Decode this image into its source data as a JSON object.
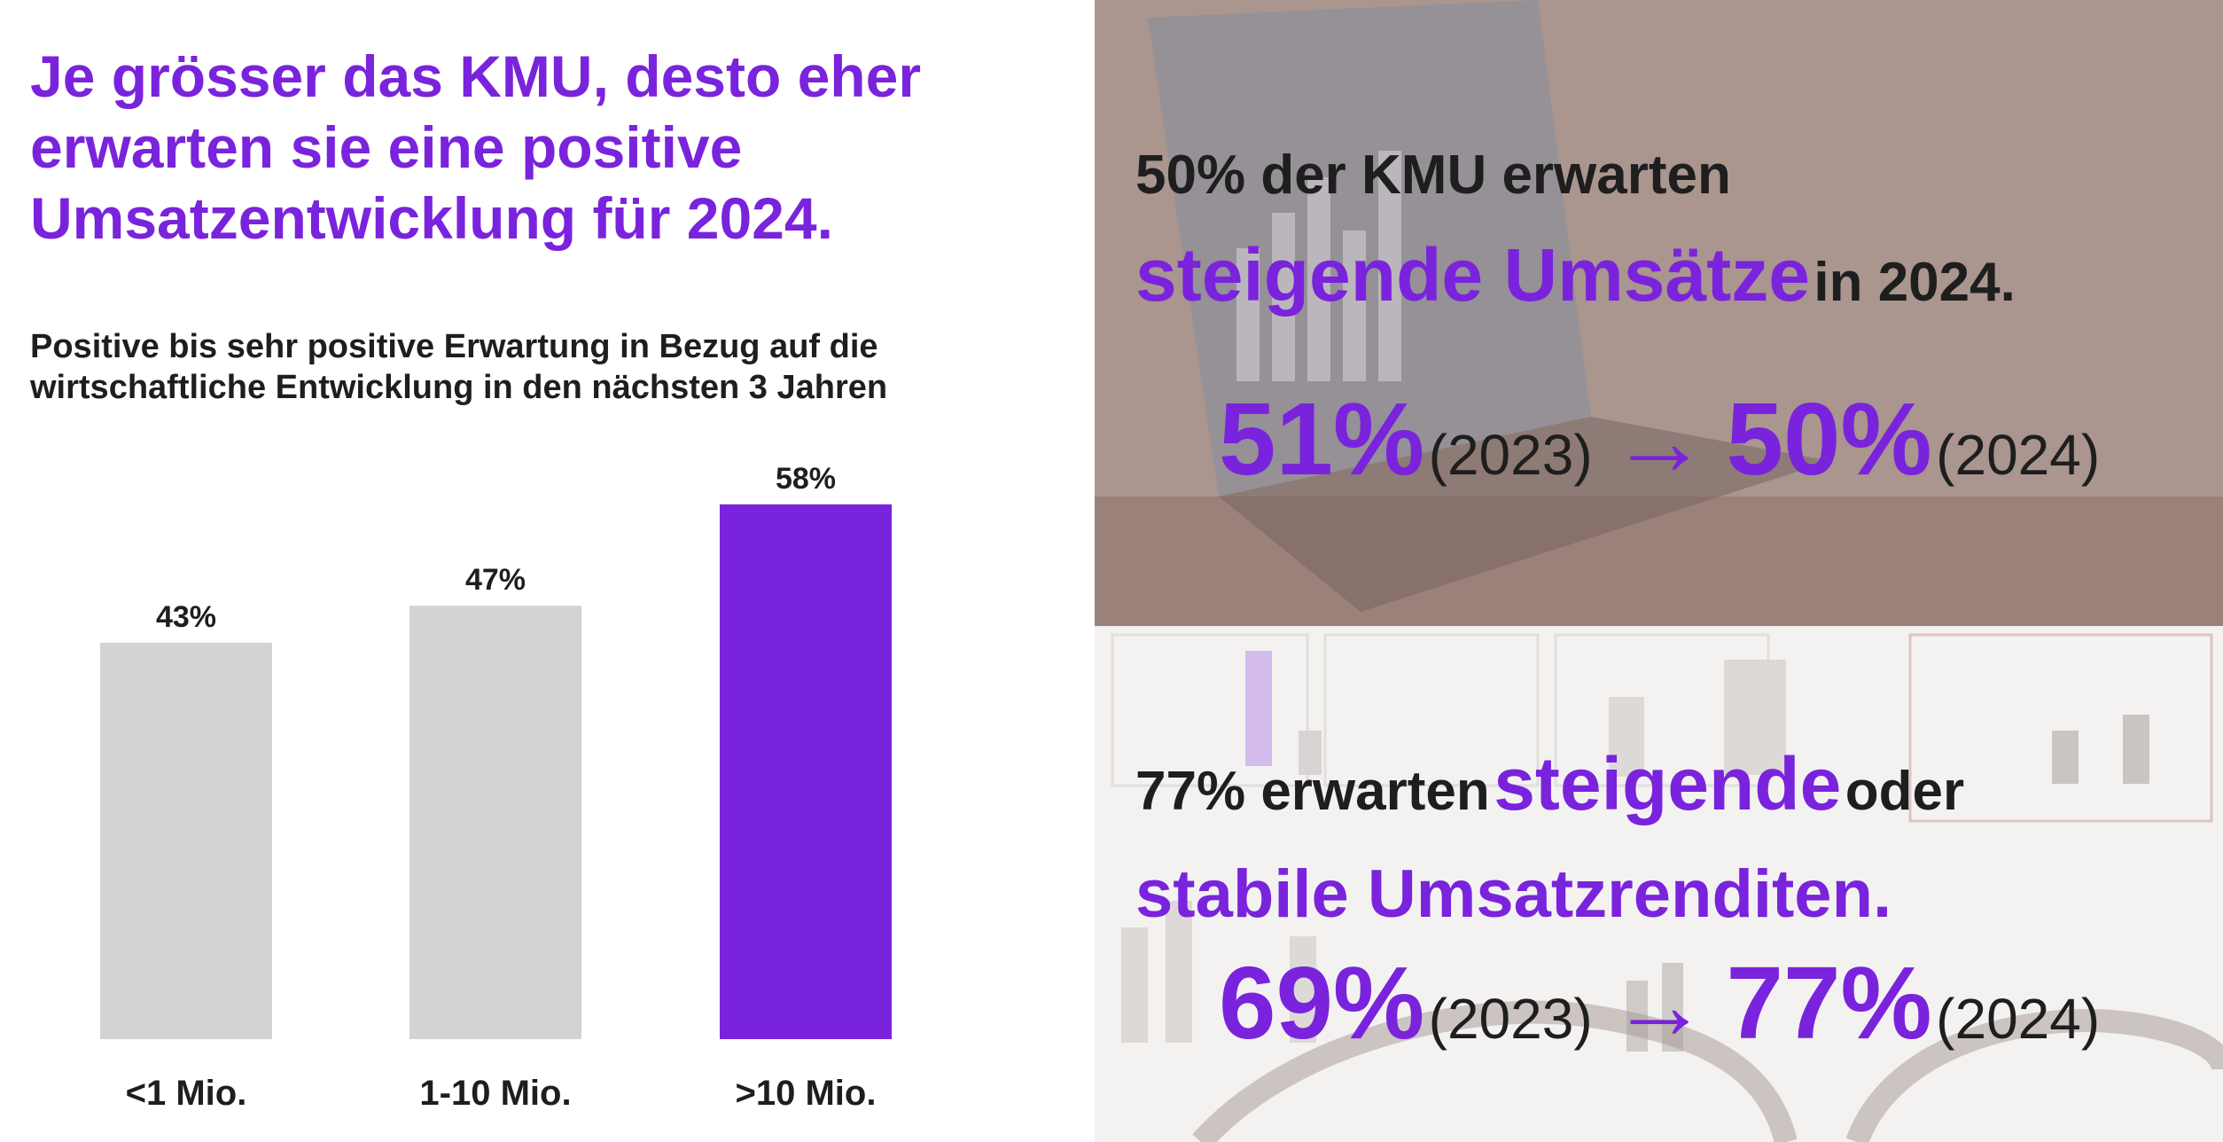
{
  "headline": "Je grösser das KMU, desto eher erwarten sie eine positive Umsatzentwicklung für 2024.",
  "chart_data": {
    "type": "bar",
    "subtitle": "Positive bis sehr positive Erwartung in Bezug auf die wirtschaftliche Entwicklung in den nächsten 3 Jahren",
    "categories": [
      "<1 Mio.",
      "1-10 Mio.",
      ">10 Mio."
    ],
    "values": [
      43,
      47,
      58
    ],
    "data_labels": [
      "43%",
      "47%",
      "58%"
    ],
    "unit": "%",
    "ylim": [
      0,
      100
    ],
    "grid": false,
    "legend": "none",
    "bar_colors": [
      "#d3d3d3",
      "#d3d3d3",
      "#7a23dc"
    ]
  },
  "panels": {
    "top": {
      "statement": {
        "lead": "50% der KMU erwarten",
        "accent": "steigende Umsätze",
        "tail": "in 2024."
      },
      "comparison": {
        "value_from": "51%",
        "year_from": "(2023)",
        "arrow": "→",
        "value_to": "50%",
        "year_to": "(2024)"
      }
    },
    "bottom": {
      "statement": {
        "lead": "77% erwarten",
        "accent1": "steigende",
        "mid": "oder",
        "accent2": "stabile Umsatzrenditen."
      },
      "comparison": {
        "value_from": "69%",
        "year_from": "(2023)",
        "arrow": "→",
        "value_to": "77%",
        "year_to": "(2024)"
      }
    }
  },
  "colors": {
    "accent": "#7a23dc",
    "bar_grey": "#d3d3d3",
    "text_dark": "#1e1e1e",
    "photo_top_overlay": "#a8938f",
    "photo_bottom_overlay": "#f1efee"
  }
}
